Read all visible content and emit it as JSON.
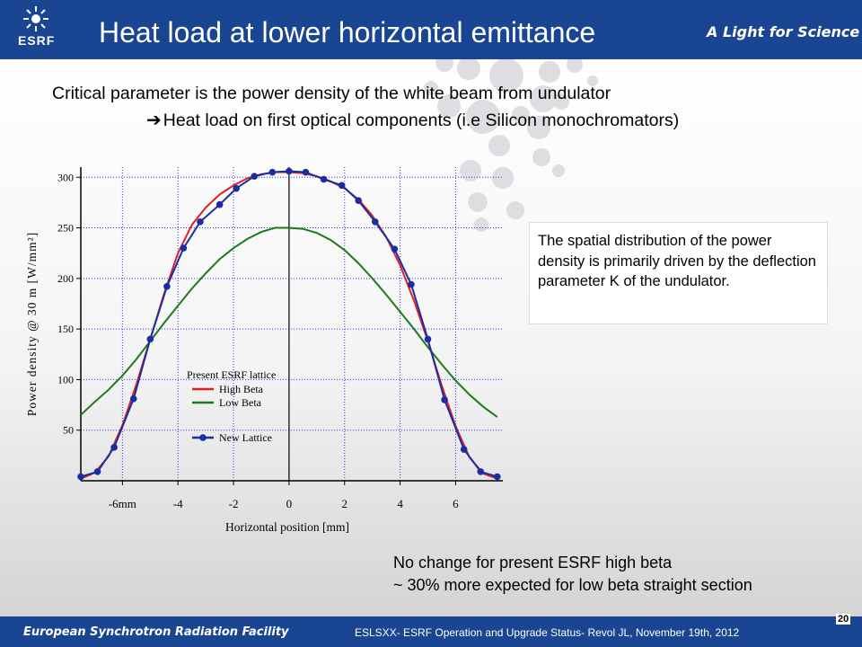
{
  "header": {
    "logo_text": "ESRF",
    "title": "Heat load at lower horizontal emittance",
    "tagline": "A Light for Science"
  },
  "body": {
    "line1": "Critical parameter is the power density of the white beam from undulator",
    "arrow": "➔",
    "line2": "Heat load on first optical components (i.e Silicon monochromators)",
    "note": "The spatial distribution of the power density is primarily driven by the deflection parameter K of the undulator.",
    "bottom_line1": "No change for present ESRF high beta",
    "bottom_line2": "~ 30% more expected for low beta straight section"
  },
  "footer": {
    "left": "European Synchrotron Radiation Facility",
    "center": "ESLSXX- ESRF Operation and Upgrade Status- Revol JL, November 19th, 2012",
    "page": "20"
  },
  "colors": {
    "brand": "#1a4593",
    "high_beta": "#e02020",
    "low_beta": "#1b7a1b",
    "new_lattice": "#1a2ea0",
    "grid": "#3030ff"
  },
  "chart_data": {
    "type": "line",
    "xlabel": "Horizontal position [mm]",
    "ylabel": "Power density @ 30 m [W/mm²]",
    "xlim": [
      -7.5,
      7.7
    ],
    "ylim": [
      0,
      310
    ],
    "x_ticks": [
      -6,
      -4,
      -2,
      0,
      2,
      4,
      6
    ],
    "x_tick_labels": [
      "-6mm",
      "-4",
      "-2",
      "0",
      "2",
      "4",
      "6"
    ],
    "y_ticks": [
      50,
      100,
      150,
      200,
      250,
      300
    ],
    "grid": true,
    "legend_title": "Present ESRF lattice",
    "series": [
      {
        "name": "High Beta",
        "style": "line",
        "color": "#e02020",
        "x": [
          -7.5,
          -7.0,
          -6.5,
          -6.0,
          -5.5,
          -5.0,
          -4.5,
          -4.0,
          -3.5,
          -3.0,
          -2.5,
          -2.0,
          -1.5,
          -1.0,
          -0.5,
          0,
          0.5,
          1.0,
          1.5,
          2.0,
          2.5,
          3.0,
          3.5,
          4.0,
          4.5,
          5.0,
          5.5,
          6.0,
          6.5,
          7.0,
          7.5
        ],
        "y": [
          2,
          8,
          24,
          55,
          95,
          140,
          185,
          225,
          253,
          270,
          283,
          292,
          299,
          303,
          305,
          305,
          304,
          301,
          296,
          289,
          278,
          262,
          241,
          213,
          178,
          138,
          94,
          54,
          23,
          7,
          2
        ]
      },
      {
        "name": "Low Beta",
        "style": "line",
        "color": "#1b7a1b",
        "x": [
          -7.5,
          -7.0,
          -6.5,
          -6.0,
          -5.5,
          -5.0,
          -4.5,
          -4.0,
          -3.5,
          -3.0,
          -2.5,
          -2.0,
          -1.5,
          -1.0,
          -0.5,
          0,
          0.5,
          1.0,
          1.5,
          2.0,
          2.5,
          3.0,
          3.5,
          4.0,
          4.5,
          5.0,
          5.5,
          6.0,
          6.5,
          7.0,
          7.5
        ],
        "y": [
          65,
          78,
          90,
          104,
          120,
          138,
          156,
          173,
          190,
          205,
          219,
          230,
          239,
          246,
          250,
          250,
          249,
          245,
          238,
          228,
          215,
          200,
          184,
          167,
          150,
          132,
          115,
          99,
          85,
          73,
          63
        ]
      },
      {
        "name": "New Lattice",
        "style": "line-markers",
        "color": "#1a2ea0",
        "x": [
          -7.5,
          -6.9,
          -6.3,
          -5.6,
          -5.0,
          -4.4,
          -3.8,
          -3.2,
          -2.5,
          -1.9,
          -1.25,
          -0.6,
          0,
          0.6,
          1.25,
          1.9,
          2.5,
          3.1,
          3.8,
          4.4,
          5.0,
          5.6,
          6.3,
          6.9,
          7.5
        ],
        "y": [
          4,
          9,
          33,
          81,
          140,
          192,
          230,
          256,
          273,
          289,
          301,
          305,
          306,
          305,
          298,
          292,
          277,
          256,
          229,
          194,
          140,
          80,
          31,
          9,
          4
        ]
      }
    ]
  }
}
